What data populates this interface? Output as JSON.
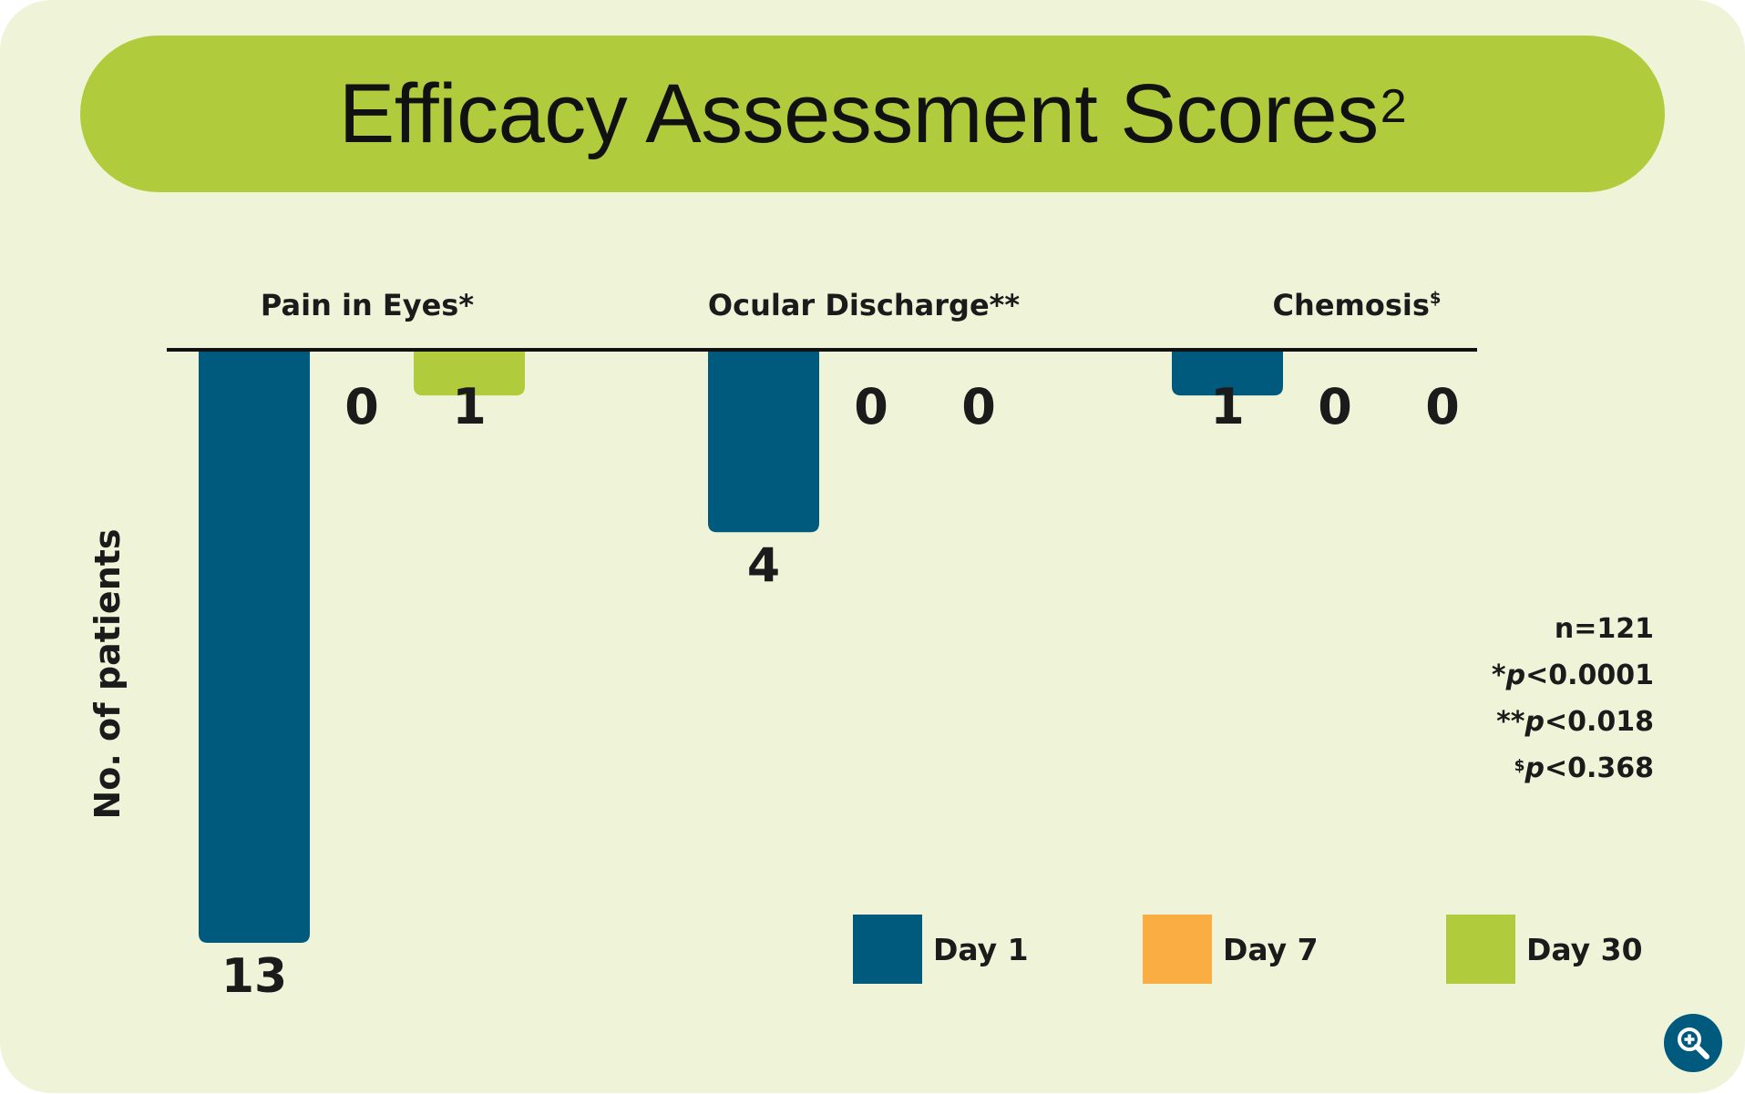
{
  "chart_data": {
    "type": "bar",
    "title": "Efficacy Assessment Scores",
    "title_superscript": "2",
    "ylabel": "No. of patients",
    "orientation": "downward",
    "categories": [
      {
        "name": "Pain in Eyes",
        "mark": "*",
        "mark_superscript": false
      },
      {
        "name": "Ocular Discharge",
        "mark": "**",
        "mark_superscript": false
      },
      {
        "name": "Chemosis",
        "mark": "$",
        "mark_superscript": true
      }
    ],
    "series": [
      {
        "name": "Day 1",
        "color": "#005a7d",
        "values": [
          13,
          4,
          1
        ]
      },
      {
        "name": "Day 7",
        "color": "#f9ad42",
        "values": [
          0,
          0,
          0
        ]
      },
      {
        "name": "Day 30",
        "color": "#b0cb3b",
        "values": [
          1,
          0,
          0
        ]
      }
    ],
    "data_labels": [
      [
        "13",
        "0",
        "1"
      ],
      [
        "4",
        "0",
        "0"
      ],
      [
        "1",
        "0",
        "0"
      ]
    ],
    "ylim": [
      0,
      13
    ],
    "grid": false,
    "legend_position": "bottom-right",
    "annotations": [
      {
        "prefix": "n=121",
        "italic": "",
        "suffix": ""
      },
      {
        "prefix": "*",
        "italic": "p",
        "suffix": "<0.0001"
      },
      {
        "prefix": "**",
        "italic": "p",
        "suffix": "<0.018"
      },
      {
        "prefix": "$",
        "prefix_superscript": true,
        "italic": "p",
        "suffix": "<0.368"
      }
    ]
  },
  "controls": {
    "zoom_icon": "zoom-in-icon"
  }
}
